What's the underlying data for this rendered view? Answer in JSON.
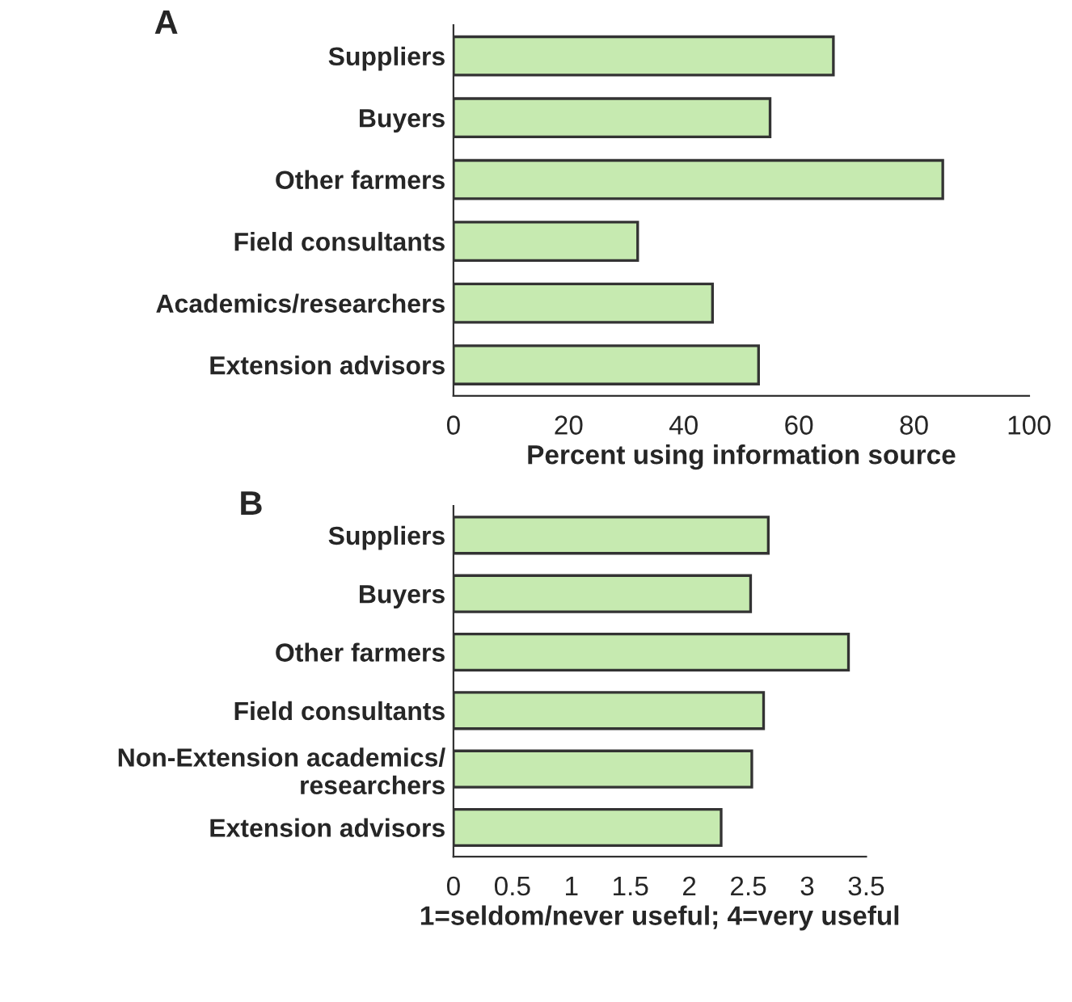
{
  "chart_data": [
    {
      "type": "bar",
      "title": "A",
      "orientation": "horizontal",
      "categories": [
        "Suppliers",
        "Buyers",
        "Other farmers",
        "Field consultants",
        "Academics/researchers",
        "Extension advisors"
      ],
      "values": [
        66,
        55,
        85,
        32,
        45,
        53
      ],
      "color": "#c6eab0",
      "xlim": [
        0,
        100
      ],
      "xticks": [
        0,
        20,
        40,
        60,
        80,
        100
      ],
      "xlabel": "Percent using information source",
      "grid": false,
      "legend": false
    },
    {
      "type": "bar",
      "title": "B",
      "orientation": "horizontal",
      "categories": [
        "Suppliers",
        "Buyers",
        "Other farmers",
        "Field consultants",
        "Non-Extension academics/\nresearchers",
        "Extension advisors"
      ],
      "values": [
        2.67,
        2.52,
        3.35,
        2.63,
        2.53,
        2.27
      ],
      "color": "#c6eab0",
      "xlim": [
        0,
        3.5
      ],
      "xticks": [
        0,
        0.5,
        1,
        1.5,
        2,
        2.5,
        3,
        3.5
      ],
      "xlabel": "1=seldom/never useful; 4=very useful",
      "grid": false,
      "legend": false
    }
  ]
}
